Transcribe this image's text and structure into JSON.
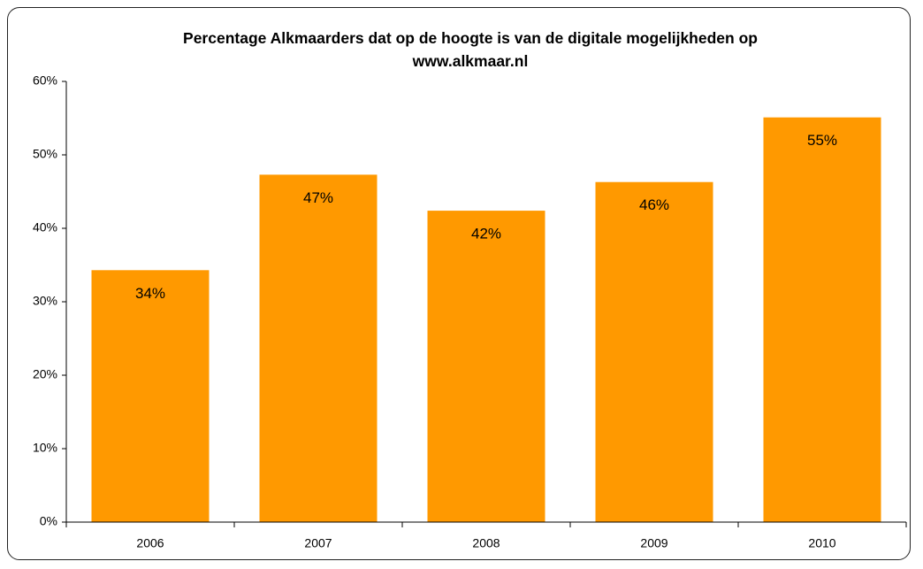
{
  "chart_data": {
    "type": "bar",
    "title": "Percentage Alkmaarders dat op de hoogte is van de digitale mogelijkheden op www.alkmaar.nl",
    "categories": [
      "2006",
      "2007",
      "2008",
      "2009",
      "2010"
    ],
    "values": [
      34.3,
      47.3,
      42.4,
      46.3,
      55.1
    ],
    "value_labels": [
      "34%",
      "47%",
      "42%",
      "46%",
      "55%"
    ],
    "color": "#ff9900",
    "ylim": [
      0,
      60
    ],
    "yticks": [
      {
        "value": 0,
        "label": "0%"
      },
      {
        "value": 10,
        "label": "10%"
      },
      {
        "value": 20,
        "label": "20%"
      },
      {
        "value": 30,
        "label": "30%"
      },
      {
        "value": 40,
        "label": "40%"
      },
      {
        "value": 50,
        "label": "50%"
      },
      {
        "value": 60,
        "label": "60%"
      }
    ],
    "grid": false
  }
}
